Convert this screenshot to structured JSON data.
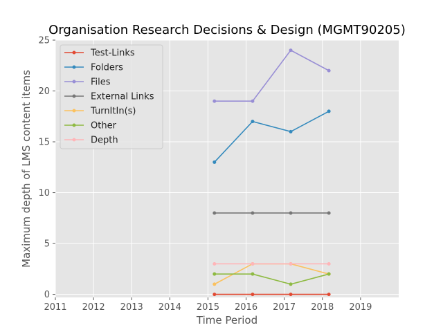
{
  "chart_data": {
    "type": "line",
    "title": "Organisation Research Decisions & Design (MGMT90205)",
    "xlabel": "Time Period",
    "ylabel": "Maximum depth of LMS content items",
    "xlim": [
      2011,
      2020
    ],
    "ylim": [
      -0.3,
      25
    ],
    "x_ticks": [
      2011,
      2012,
      2013,
      2014,
      2015,
      2016,
      2017,
      2018,
      2019
    ],
    "y_ticks": [
      0,
      5,
      10,
      15,
      20,
      25
    ],
    "grid": true,
    "legend_position": "top-left",
    "background_color": "#e5e5e5",
    "x": [
      2015.17,
      2016.17,
      2017.17,
      2018.17
    ],
    "series": [
      {
        "name": "Test-Links",
        "color": "#e24a33",
        "values": [
          0,
          0,
          0,
          0
        ]
      },
      {
        "name": "Folders",
        "color": "#348abd",
        "values": [
          13,
          17,
          16,
          18
        ]
      },
      {
        "name": "Files",
        "color": "#988ed5",
        "values": [
          19,
          19,
          24,
          22
        ]
      },
      {
        "name": "External Links",
        "color": "#777777",
        "values": [
          8,
          8,
          8,
          8
        ]
      },
      {
        "name": "TurnItIn(s)",
        "color": "#fbc15e",
        "values": [
          1,
          3,
          3,
          2
        ]
      },
      {
        "name": "Other",
        "color": "#8eba42",
        "values": [
          2,
          2,
          1,
          2
        ]
      },
      {
        "name": "Depth",
        "color": "#ffb5b8",
        "values": [
          3,
          3,
          3,
          3
        ]
      }
    ]
  }
}
